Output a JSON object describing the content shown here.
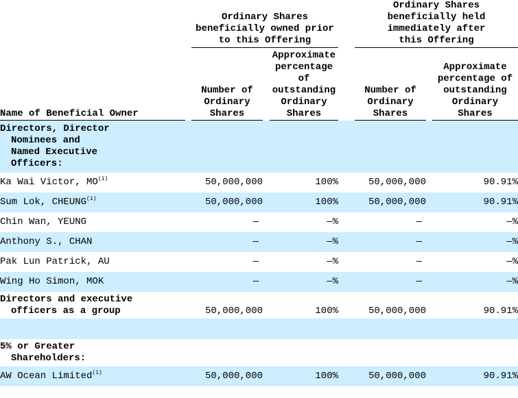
{
  "header": {
    "group_prior": "Ordinary Shares beneficially owned prior to this Offering",
    "group_after": "Ordinary Shares beneficially held immediately after this Offering",
    "name_col": "Name of Beneficial Owner",
    "num_prior": "Number of Ordinary Shares",
    "pct_prior": "Approximate percentage of outstanding Ordinary Shares",
    "num_after": "Number of Ordinary Shares",
    "pct_after": "Approximate percentage of outstanding Ordinary Shares"
  },
  "sections": {
    "directors_l1": "Directors, Director",
    "directors_l2": "Nominees and",
    "directors_l3": "Named  Executive",
    "directors_l4": "Officers:",
    "group_l1": "Directors and executive",
    "group_l2": "officers as a group",
    "five_l1": "5% or Greater",
    "five_l2": "Shareholders:"
  },
  "rows": [
    {
      "name": "Ka Wai Victor, MO",
      "note": "(1)",
      "num_prior": "50,000,000",
      "pct_prior": "100%",
      "num_after": "50,000,000",
      "pct_after": "90.91%"
    },
    {
      "name": "Sum Lok, CHEUNG",
      "note": "(1)",
      "num_prior": "50,000,000",
      "pct_prior": "100%",
      "num_after": "50,000,000",
      "pct_after": "90.91%"
    },
    {
      "name": "Chin Wan, YEUNG",
      "note": "",
      "num_prior": "—",
      "pct_prior": "—%",
      "num_after": "—",
      "pct_after": "—%"
    },
    {
      "name": "Anthony S., CHAN",
      "note": "",
      "num_prior": "—",
      "pct_prior": "—%",
      "num_after": "—",
      "pct_after": "—%"
    },
    {
      "name": "Pak Lun Patrick, AU",
      "note": "",
      "num_prior": "—",
      "pct_prior": "—%",
      "num_after": "—",
      "pct_after": "—%"
    },
    {
      "name": "Wing Ho Simon, MOK",
      "note": "",
      "num_prior": "—",
      "pct_prior": "—%",
      "num_after": "—",
      "pct_after": "—%"
    }
  ],
  "group_total": {
    "num_prior": "50,000,000",
    "pct_prior": "100%",
    "num_after": "50,000,000",
    "pct_after": "90.91%"
  },
  "holders": [
    {
      "name": "AW Ocean Limited",
      "note": "(1)",
      "num_prior": "50,000,000",
      "pct_prior": "100%",
      "num_after": "50,000,000",
      "pct_after": "90.91%"
    }
  ],
  "colors": {
    "row_highlight": "#cceeff"
  }
}
